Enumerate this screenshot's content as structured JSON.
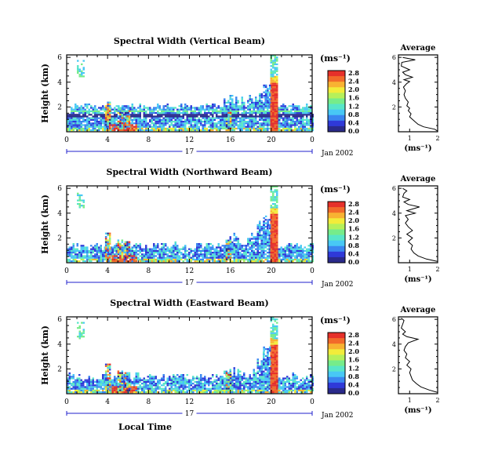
{
  "colorbar_colors": [
    "#2a2a8a",
    "#2f39d8",
    "#3a86f0",
    "#48c8f5",
    "#58e6c8",
    "#76ec8a",
    "#b6f05a",
    "#f2ec3a",
    "#f8b232",
    "#f26a2a",
    "#e6302a"
  ],
  "height_label": "Height (km)",
  "unit_label": "(ms⁻¹)",
  "date_label": "Jan 2002",
  "time_label": "Local Time",
  "average_title": "Average",
  "chart_data": [
    {
      "type": "heatmap",
      "title": "Spectral Width (Vertical Beam)",
      "xlabel": "Local Time",
      "ylabel": "Height (km)",
      "x_ticks": [
        "0",
        "4",
        "8",
        "12",
        "16",
        "20",
        "0"
      ],
      "xlim": [
        0,
        24
      ],
      "y_ticks": [
        "2",
        "4",
        "6"
      ],
      "ylim": [
        0,
        6.2
      ],
      "day_label": "17",
      "date_label": "Jan 2002",
      "colorbar": {
        "label": "(ms⁻¹)",
        "ticks": [
          "0.0",
          "0.4",
          "0.8",
          "1.2",
          "1.6",
          "2.0",
          "2.4",
          "2.8"
        ],
        "range": [
          0,
          2.8
        ]
      },
      "average_profile": {
        "title": "Average",
        "xlabel": "(ms⁻¹)",
        "x_ticks": [
          "1",
          "2"
        ],
        "xlim": [
          0.6,
          2.0
        ],
        "ylim": [
          0,
          6.2
        ],
        "y_ticks": [
          "2",
          "4",
          "6"
        ],
        "points": [
          [
            2.0,
            0.05
          ],
          [
            1.9,
            0.2
          ],
          [
            1.5,
            0.4
          ],
          [
            1.3,
            0.6
          ],
          [
            1.2,
            0.8
          ],
          [
            1.1,
            1.0
          ],
          [
            1.0,
            1.2
          ],
          [
            1.05,
            1.45
          ],
          [
            0.95,
            1.7
          ],
          [
            1.0,
            1.9
          ],
          [
            0.9,
            2.1
          ],
          [
            0.95,
            2.4
          ],
          [
            0.85,
            2.7
          ],
          [
            0.8,
            3.0
          ],
          [
            0.85,
            3.3
          ],
          [
            0.78,
            3.6
          ],
          [
            0.9,
            3.9
          ],
          [
            1.0,
            4.05
          ],
          [
            0.8,
            4.2
          ],
          [
            1.1,
            4.4
          ],
          [
            0.85,
            4.6
          ],
          [
            0.75,
            4.8
          ],
          [
            1.0,
            5.0
          ],
          [
            0.7,
            5.3
          ],
          [
            0.72,
            5.6
          ],
          [
            1.2,
            5.8
          ],
          [
            0.75,
            6.0
          ]
        ]
      }
    },
    {
      "type": "heatmap",
      "title": "Spectral Width (Northward Beam)",
      "xlabel": "Local Time",
      "ylabel": "Height (km)",
      "x_ticks": [
        "0",
        "4",
        "8",
        "12",
        "16",
        "20",
        "0"
      ],
      "xlim": [
        0,
        24
      ],
      "y_ticks": [
        "2",
        "4",
        "6"
      ],
      "ylim": [
        0,
        6.2
      ],
      "day_label": "17",
      "date_label": "Jan 2002",
      "colorbar": {
        "label": "(ms⁻¹)",
        "ticks": [
          "0.0",
          "0.4",
          "0.8",
          "1.2",
          "1.6",
          "2.0",
          "2.4",
          "2.8"
        ],
        "range": [
          0,
          2.8
        ]
      },
      "average_profile": {
        "title": "Average",
        "xlabel": "(ms⁻¹)",
        "x_ticks": [
          "1",
          "2"
        ],
        "xlim": [
          0.6,
          2.0
        ],
        "ylim": [
          0,
          6.2
        ],
        "y_ticks": [
          "2",
          "4",
          "6"
        ],
        "points": [
          [
            2.0,
            0.1
          ],
          [
            1.6,
            0.3
          ],
          [
            1.3,
            0.55
          ],
          [
            1.15,
            0.8
          ],
          [
            1.05,
            1.1
          ],
          [
            1.1,
            1.4
          ],
          [
            0.95,
            1.7
          ],
          [
            1.1,
            2.0
          ],
          [
            0.9,
            2.3
          ],
          [
            1.1,
            2.6
          ],
          [
            0.95,
            2.9
          ],
          [
            0.85,
            3.2
          ],
          [
            0.95,
            3.5
          ],
          [
            0.85,
            3.8
          ],
          [
            1.2,
            4.0
          ],
          [
            0.9,
            4.2
          ],
          [
            1.35,
            4.5
          ],
          [
            0.95,
            4.7
          ],
          [
            0.8,
            4.9
          ],
          [
            1.0,
            5.1
          ],
          [
            0.75,
            5.3
          ],
          [
            0.8,
            5.6
          ],
          [
            0.9,
            5.8
          ],
          [
            0.75,
            6.0
          ]
        ]
      }
    },
    {
      "type": "heatmap",
      "title": "Spectral Width (Eastward Beam)",
      "xlabel": "Local Time",
      "ylabel": "Height (km)",
      "x_ticks": [
        "0",
        "4",
        "8",
        "12",
        "16",
        "20",
        "0"
      ],
      "xlim": [
        0,
        24
      ],
      "y_ticks": [
        "2",
        "4",
        "6"
      ],
      "ylim": [
        0,
        6.2
      ],
      "day_label": "17",
      "date_label": "Jan 2002",
      "colorbar": {
        "label": "(ms⁻¹)",
        "ticks": [
          "0.0",
          "0.4",
          "0.8",
          "1.2",
          "1.6",
          "2.0",
          "2.4",
          "2.8"
        ],
        "range": [
          0,
          2.8
        ]
      },
      "average_profile": {
        "title": "Average",
        "xlabel": "(ms⁻¹)",
        "x_ticks": [
          "1",
          "2"
        ],
        "xlim": [
          0.6,
          2.0
        ],
        "ylim": [
          0,
          6.2
        ],
        "y_ticks": [
          "2",
          "4",
          "6"
        ],
        "points": [
          [
            2.0,
            0.1
          ],
          [
            1.7,
            0.3
          ],
          [
            1.4,
            0.55
          ],
          [
            1.25,
            0.8
          ],
          [
            1.1,
            1.1
          ],
          [
            1.05,
            1.4
          ],
          [
            1.0,
            1.7
          ],
          [
            1.05,
            2.0
          ],
          [
            0.9,
            2.3
          ],
          [
            1.0,
            2.6
          ],
          [
            0.85,
            2.9
          ],
          [
            0.9,
            3.2
          ],
          [
            0.8,
            3.5
          ],
          [
            0.85,
            3.8
          ],
          [
            0.95,
            4.1
          ],
          [
            1.3,
            4.4
          ],
          [
            0.9,
            4.6
          ],
          [
            0.75,
            4.8
          ],
          [
            0.85,
            5.0
          ],
          [
            0.7,
            5.3
          ],
          [
            0.75,
            5.6
          ],
          [
            0.8,
            5.9
          ],
          [
            0.7,
            6.1
          ]
        ]
      }
    }
  ]
}
